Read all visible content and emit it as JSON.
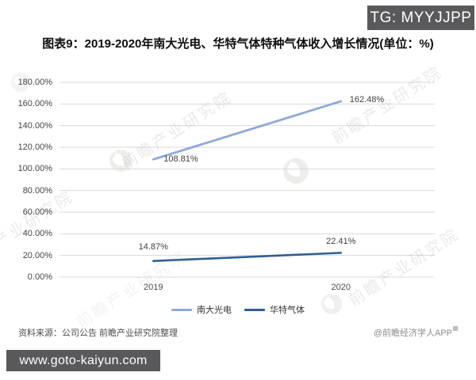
{
  "badge": {
    "text": "TG: MYYJJPP"
  },
  "title": "图表9：2019-2020年南大光电、华特气体特种气体收入增长情况(单位：%)",
  "chart_data": {
    "type": "line",
    "categories": [
      "2019",
      "2020"
    ],
    "series": [
      {
        "name": "南大光电",
        "color": "#8ea9db",
        "values": [
          108.81,
          162.48
        ]
      },
      {
        "name": "华特气体",
        "color": "#2f5d94",
        "values": [
          14.87,
          22.41
        ]
      }
    ],
    "data_labels": [
      [
        "108.81%",
        "162.48%"
      ],
      [
        "14.87%",
        "22.41%"
      ]
    ],
    "title": "图表9：2019-2020年南大光电、华特气体特种气体收入增长情况(单位：%)",
    "xlabel": "",
    "ylabel": "",
    "ylim": [
      0,
      180
    ],
    "ytick_step": 20,
    "ytick_suffix": "%",
    "grid": true,
    "legend_position": "bottom"
  },
  "footer": {
    "source": "资料来源：公司公告 前瞻产业研究院整理",
    "credit": "@前瞻经济学人APP"
  },
  "url_box": {
    "text": "www.goto-kaiyun.com"
  },
  "watermark": {
    "text": "前瞻产业研究院"
  },
  "colors": {
    "badge_bg": "#59595b",
    "grid_line": "#d9d9d9",
    "series_light": "#8ea9db",
    "series_dark": "#2f5d94",
    "axis_text": "#444444",
    "source_text": "#4d4d4d",
    "credit_text": "#8c8c8c"
  }
}
